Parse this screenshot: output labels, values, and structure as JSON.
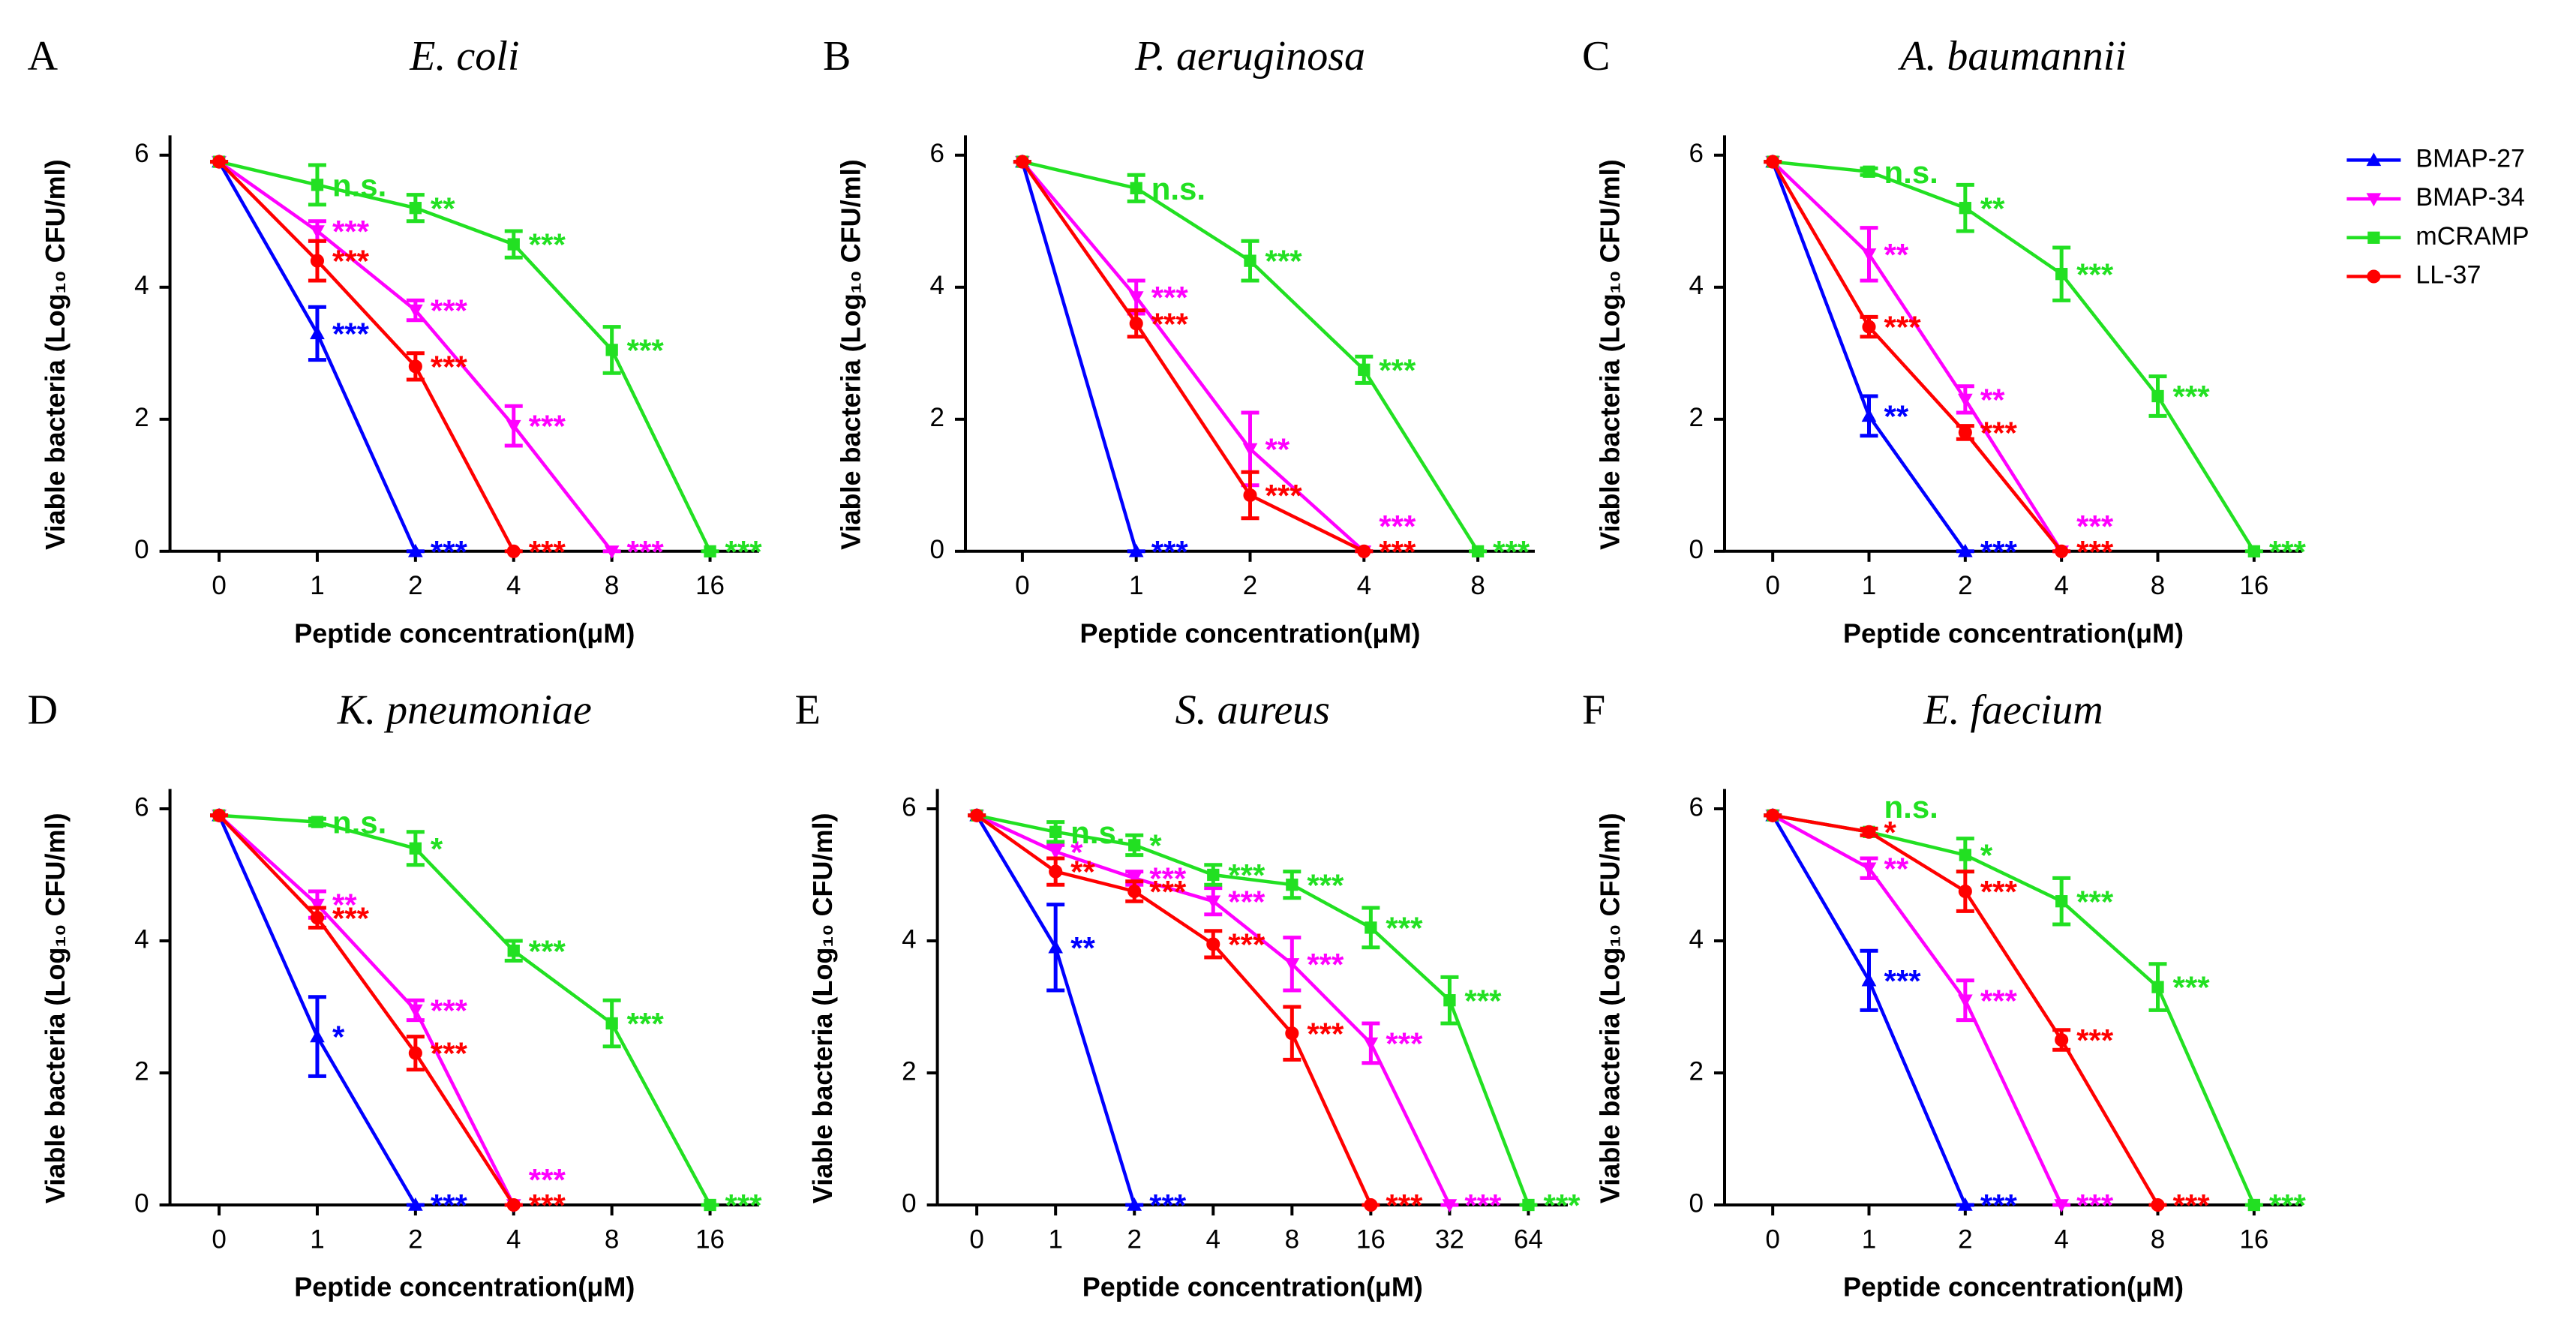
{
  "legend": [
    {
      "name": "BMAP-27",
      "color": "#0000ff",
      "marker": "triangle-up"
    },
    {
      "name": "BMAP-34",
      "color": "#ff00ff",
      "marker": "triangle-down"
    },
    {
      "name": "mCRAMP",
      "color": "#22e022",
      "marker": "square"
    },
    {
      "name": "LL-37",
      "color": "#ff0000",
      "marker": "circle"
    }
  ],
  "chart_data": [
    {
      "type": "line",
      "panel": "A",
      "title": "E. coli",
      "x_label": "Peptide concentration(μM)",
      "y_label": "Viable bacteria (Log₁₀ CFU/ml)",
      "categories": [
        "0",
        "1",
        "2",
        "4",
        "8",
        "16"
      ],
      "ylim": [
        0,
        6.3
      ],
      "yticks": [
        0,
        2,
        4,
        6
      ],
      "series": [
        {
          "values": [
            5.9,
            3.3,
            0,
            null,
            null,
            null
          ],
          "errors": [
            0,
            0.4,
            0,
            null,
            null,
            null
          ],
          "annotations": [
            null,
            "***",
            "***",
            null,
            null,
            null
          ]
        },
        {
          "values": [
            5.9,
            4.85,
            3.65,
            1.9,
            0,
            null
          ],
          "errors": [
            0,
            0.15,
            0.15,
            0.3,
            0,
            null
          ],
          "annotations": [
            null,
            "***",
            "***",
            "***",
            "***",
            null
          ]
        },
        {
          "values": [
            5.9,
            5.55,
            5.2,
            4.65,
            3.05,
            0
          ],
          "errors": [
            0,
            0.3,
            0.2,
            0.2,
            0.35,
            0
          ],
          "annotations": [
            null,
            "n.s.",
            "**",
            "***",
            "***",
            "***"
          ]
        },
        {
          "values": [
            5.9,
            4.4,
            2.8,
            0,
            null,
            null
          ],
          "errors": [
            0,
            0.3,
            0.2,
            0,
            null,
            null
          ],
          "annotations": [
            null,
            "***",
            "***",
            "***",
            null,
            null
          ]
        }
      ]
    },
    {
      "type": "line",
      "panel": "B",
      "title": "P. aeruginosa",
      "x_label": "Peptide concentration(μM)",
      "y_label": "Viable bacteria (Log₁₀ CFU/ml)",
      "categories": [
        "0",
        "1",
        "2",
        "4",
        "8"
      ],
      "ylim": [
        0,
        6.3
      ],
      "yticks": [
        0,
        2,
        4,
        6
      ],
      "series": [
        {
          "values": [
            5.9,
            0,
            null,
            null,
            null
          ],
          "errors": [
            0,
            0,
            null,
            null,
            null
          ],
          "annotations": [
            null,
            "***",
            null,
            null,
            null
          ]
        },
        {
          "values": [
            5.9,
            3.85,
            1.55,
            0,
            null
          ],
          "errors": [
            0,
            0.25,
            0.55,
            0,
            null
          ],
          "annotations": [
            null,
            "***",
            "**",
            "***",
            null
          ]
        },
        {
          "values": [
            5.9,
            5.5,
            4.4,
            2.75,
            0
          ],
          "errors": [
            0,
            0.2,
            0.3,
            0.2,
            0
          ],
          "annotations": [
            null,
            "n.s.",
            "***",
            "***",
            "***"
          ]
        },
        {
          "values": [
            5.9,
            3.45,
            0.85,
            0,
            null
          ],
          "errors": [
            0,
            0.2,
            0.35,
            0,
            null
          ],
          "annotations": [
            null,
            "***",
            "***",
            "***",
            null
          ]
        }
      ]
    },
    {
      "type": "line",
      "panel": "C",
      "title": "A. baumannii",
      "x_label": "Peptide concentration(μM)",
      "y_label": "Viable bacteria (Log₁₀ CFU/ml)",
      "categories": [
        "0",
        "1",
        "2",
        "4",
        "8",
        "16"
      ],
      "ylim": [
        0,
        6.3
      ],
      "yticks": [
        0,
        2,
        4,
        6
      ],
      "series": [
        {
          "values": [
            5.9,
            2.05,
            0,
            null,
            null,
            null
          ],
          "errors": [
            0,
            0.3,
            0,
            null,
            null,
            null
          ],
          "annotations": [
            null,
            "**",
            "***",
            null,
            null,
            null
          ]
        },
        {
          "values": [
            5.9,
            4.5,
            2.3,
            0,
            null,
            null
          ],
          "errors": [
            0,
            0.4,
            0.2,
            0,
            null,
            null
          ],
          "annotations": [
            null,
            "**",
            "**",
            "***",
            null,
            null
          ]
        },
        {
          "values": [
            5.9,
            5.75,
            5.2,
            4.2,
            2.35,
            0
          ],
          "errors": [
            0,
            0.05,
            0.35,
            0.4,
            0.3,
            0
          ],
          "annotations": [
            null,
            "n.s.",
            "**",
            "***",
            "***",
            "***"
          ]
        },
        {
          "values": [
            5.9,
            3.4,
            1.8,
            0,
            null,
            null
          ],
          "errors": [
            0,
            0.15,
            0.1,
            0,
            null,
            null
          ],
          "annotations": [
            null,
            "***",
            "***",
            "***",
            null,
            null
          ]
        }
      ]
    },
    {
      "type": "line",
      "panel": "D",
      "title": "K. pneumoniae",
      "x_label": "Peptide concentration(μM)",
      "y_label": "Viable bacteria (Log₁₀ CFU/ml)",
      "categories": [
        "0",
        "1",
        "2",
        "4",
        "8",
        "16"
      ],
      "ylim": [
        0,
        6.3
      ],
      "yticks": [
        0,
        2,
        4,
        6
      ],
      "series": [
        {
          "values": [
            5.9,
            2.55,
            0,
            null,
            null,
            null
          ],
          "errors": [
            0,
            0.6,
            0,
            null,
            null,
            null
          ],
          "annotations": [
            null,
            "*",
            "***",
            null,
            null,
            null
          ]
        },
        {
          "values": [
            5.9,
            4.55,
            2.95,
            0,
            null,
            null
          ],
          "errors": [
            0,
            0.2,
            0.15,
            0,
            null,
            null
          ],
          "annotations": [
            null,
            "**",
            "***",
            "***",
            null,
            null
          ]
        },
        {
          "values": [
            5.9,
            5.8,
            5.4,
            3.85,
            2.75,
            0
          ],
          "errors": [
            0,
            0.05,
            0.25,
            0.15,
            0.35,
            0
          ],
          "annotations": [
            null,
            "n.s.",
            "*",
            "***",
            "***",
            "***"
          ]
        },
        {
          "values": [
            5.9,
            4.35,
            2.3,
            0,
            null,
            null
          ],
          "errors": [
            0,
            0.15,
            0.25,
            0,
            null,
            null
          ],
          "annotations": [
            null,
            "***",
            "***",
            "***",
            null,
            null
          ]
        }
      ]
    },
    {
      "type": "line",
      "panel": "E",
      "title": "S. aureus",
      "x_label": "Peptide concentration(μM)",
      "y_label": "Viable bacteria (Log₁₀ CFU/ml)",
      "categories": [
        "0",
        "1",
        "2",
        "4",
        "8",
        "16",
        "32",
        "64"
      ],
      "ylim": [
        0,
        6.3
      ],
      "yticks": [
        0,
        2,
        4,
        6
      ],
      "series": [
        {
          "values": [
            5.9,
            3.9,
            0,
            null,
            null,
            null,
            null,
            null
          ],
          "errors": [
            0,
            0.65,
            0,
            null,
            null,
            null,
            null,
            null
          ],
          "annotations": [
            null,
            "**",
            "***",
            null,
            null,
            null,
            null,
            null
          ]
        },
        {
          "values": [
            5.9,
            5.35,
            4.95,
            4.6,
            3.65,
            2.45,
            0,
            null
          ],
          "errors": [
            0,
            0.1,
            0.1,
            0.2,
            0.4,
            0.3,
            0,
            null
          ],
          "annotations": [
            null,
            "*",
            "***",
            "***",
            "***",
            "***",
            "***",
            null
          ]
        },
        {
          "values": [
            5.9,
            5.65,
            5.45,
            5.0,
            4.85,
            4.2,
            3.1,
            0
          ],
          "errors": [
            0,
            0.15,
            0.15,
            0.15,
            0.2,
            0.3,
            0.35,
            0
          ],
          "annotations": [
            null,
            "n.s.",
            "*",
            "***",
            "***",
            "***",
            "***",
            "***"
          ]
        },
        {
          "values": [
            5.9,
            5.05,
            4.75,
            3.95,
            2.6,
            0,
            null,
            null
          ],
          "errors": [
            0,
            0.2,
            0.15,
            0.2,
            0.4,
            0,
            null,
            null
          ],
          "annotations": [
            null,
            "**",
            "***",
            "***",
            "***",
            "***",
            null,
            null
          ]
        }
      ]
    },
    {
      "type": "line",
      "panel": "F",
      "title": "E. faecium",
      "x_label": "Peptide concentration(μM)",
      "y_label": "Viable bacteria (Log₁₀ CFU/ml)",
      "categories": [
        "0",
        "1",
        "2",
        "4",
        "8",
        "16"
      ],
      "ylim": [
        0,
        6.3
      ],
      "yticks": [
        0,
        2,
        4,
        6
      ],
      "series": [
        {
          "values": [
            5.9,
            3.4,
            0,
            null,
            null,
            null
          ],
          "errors": [
            0,
            0.45,
            0,
            null,
            null,
            null
          ],
          "annotations": [
            null,
            "***",
            "***",
            null,
            null,
            null
          ]
        },
        {
          "values": [
            5.9,
            5.1,
            3.1,
            0,
            null,
            null
          ],
          "errors": [
            0,
            0.15,
            0.3,
            0,
            null,
            null
          ],
          "annotations": [
            null,
            "**",
            "***",
            "***",
            null,
            null
          ]
        },
        {
          "values": [
            5.9,
            5.65,
            5.3,
            4.6,
            3.3,
            0
          ],
          "errors": [
            0,
            0.05,
            0.25,
            0.35,
            0.35,
            0
          ],
          "annotations": [
            null,
            "n.s.",
            "*",
            "***",
            "***",
            "***"
          ]
        },
        {
          "values": [
            5.9,
            5.65,
            4.75,
            2.5,
            0,
            null
          ],
          "errors": [
            0,
            0.05,
            0.3,
            0.15,
            0,
            null
          ],
          "annotations": [
            null,
            "*",
            "***",
            "***",
            "***",
            null
          ]
        }
      ]
    }
  ]
}
